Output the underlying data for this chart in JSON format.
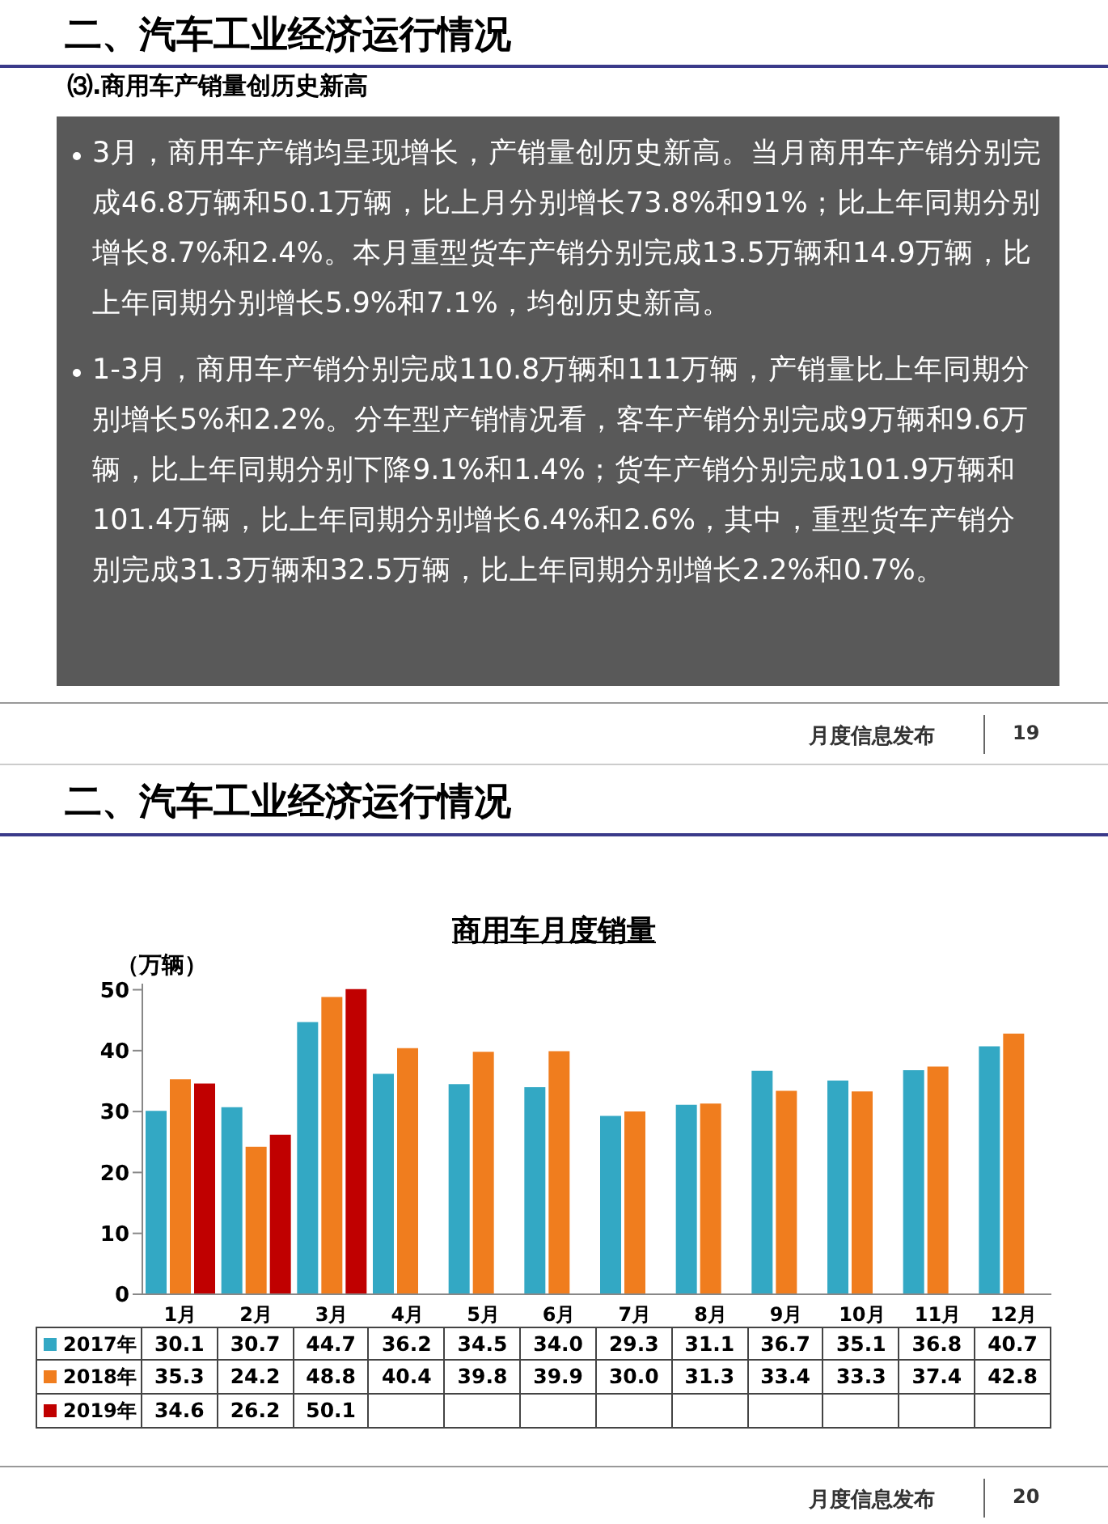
{
  "chart_data": {
    "type": "bar",
    "title": "商用车月度销量",
    "ylabel": "（万辆）",
    "categories": [
      "1月",
      "2月",
      "3月",
      "4月",
      "5月",
      "6月",
      "7月",
      "8月",
      "9月",
      "10月",
      "11月",
      "12月"
    ],
    "series": [
      {
        "name": "2017年",
        "color": "#33a8c4",
        "values": [
          30.1,
          30.7,
          44.7,
          36.2,
          34.5,
          34.0,
          29.3,
          31.1,
          36.7,
          35.1,
          36.8,
          40.7
        ],
        "value_labels": [
          "30.1",
          "30.7",
          "44.7",
          "36.2",
          "34.5",
          "34.0",
          "29.3",
          "31.1",
          "36.7",
          "35.1",
          "36.8",
          "40.7"
        ]
      },
      {
        "name": "2018年",
        "color": "#f07d1e",
        "values": [
          35.3,
          24.2,
          48.8,
          40.4,
          39.8,
          39.9,
          30.0,
          31.3,
          33.4,
          33.3,
          37.4,
          42.8
        ],
        "value_labels": [
          "35.3",
          "24.2",
          "48.8",
          "40.4",
          "39.8",
          "39.9",
          "30.0",
          "31.3",
          "33.4",
          "33.3",
          "37.4",
          "42.8"
        ]
      },
      {
        "name": "2019年",
        "color": "#c00000",
        "values": [
          34.6,
          26.2,
          50.1,
          null,
          null,
          null,
          null,
          null,
          null,
          null,
          null,
          null
        ],
        "value_labels": [
          "34.6",
          "26.2",
          "50.1",
          null,
          null,
          null,
          null,
          null,
          null,
          null,
          null,
          null
        ]
      }
    ],
    "ylim": [
      0,
      51
    ],
    "yticks": [
      0,
      10,
      20,
      30,
      40,
      50
    ],
    "legend": "bottom",
    "annotations": [
      "二、汽车工业经济运行情况",
      "⑶.商用车产销量创历史新高",
      "3月，商用车产销均呈现增长，产销量创历史新高。当月商用车产销分别完成46.8万辆和50.1万辆，比上月分别增长73.8%和91%；比上年同期分别增长8.7%和2.4%。本月重型货车产销分别完成13.5万辆和14.9万辆，比上年同期分别增长5.9%和7.1%，均创历史新高。",
      "1-3月，商用车产销分别完成110.8万辆和111万辆，产销量比上年同期分别增长5%和2.2%。分车型产销情况看，客车产销分别完成9万辆和9.6万辆，比上年同期分别下降9.1%和1.4%；货车产销分别完成101.9万辆和101.4万辆，比上年同期分别增长6.4%和2.6%，其中，重型货车产销分别完成31.3万辆和32.5万辆，比上年同期分别增长2.2%和0.7%。",
      "月度信息发布",
      "19",
      "二、汽车工业经济运行情况",
      "月度信息发布",
      "20"
    ]
  }
}
